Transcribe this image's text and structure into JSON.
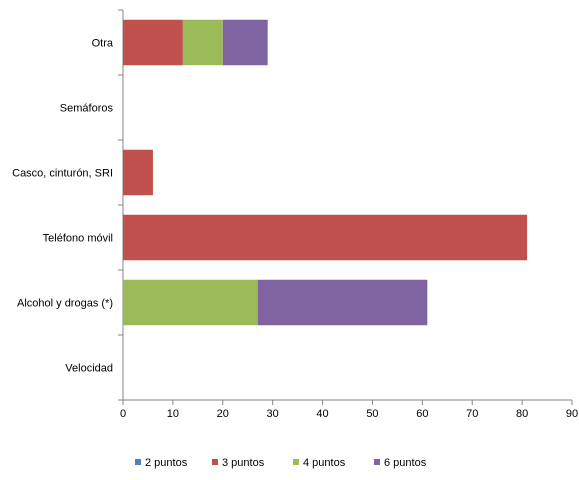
{
  "chart_data": {
    "type": "bar",
    "orientation": "horizontal",
    "stacked": true,
    "categories": [
      "Velocidad",
      "Alcohol y drogas (*)",
      "Teléfono móvil",
      "Casco, cinturón, SRI",
      "Semáforos",
      "Otra"
    ],
    "series": [
      {
        "name": "2 puntos",
        "color": "#4F81BD",
        "values": [
          0,
          0,
          0,
          0,
          0,
          0
        ]
      },
      {
        "name": "3 puntos",
        "color": "#C0504D",
        "values": [
          0,
          0,
          81,
          6,
          0,
          12
        ]
      },
      {
        "name": "4 puntos",
        "color": "#9BBB59",
        "values": [
          0,
          27,
          0,
          0,
          0,
          8
        ]
      },
      {
        "name": "6 puntos",
        "color": "#8064A2",
        "values": [
          0,
          34,
          0,
          0,
          0,
          9
        ]
      }
    ],
    "xlim": [
      0,
      90
    ],
    "xticks": [
      0,
      10,
      20,
      30,
      40,
      50,
      60,
      70,
      80,
      90
    ],
    "grid": false,
    "legend_position": "bottom"
  }
}
